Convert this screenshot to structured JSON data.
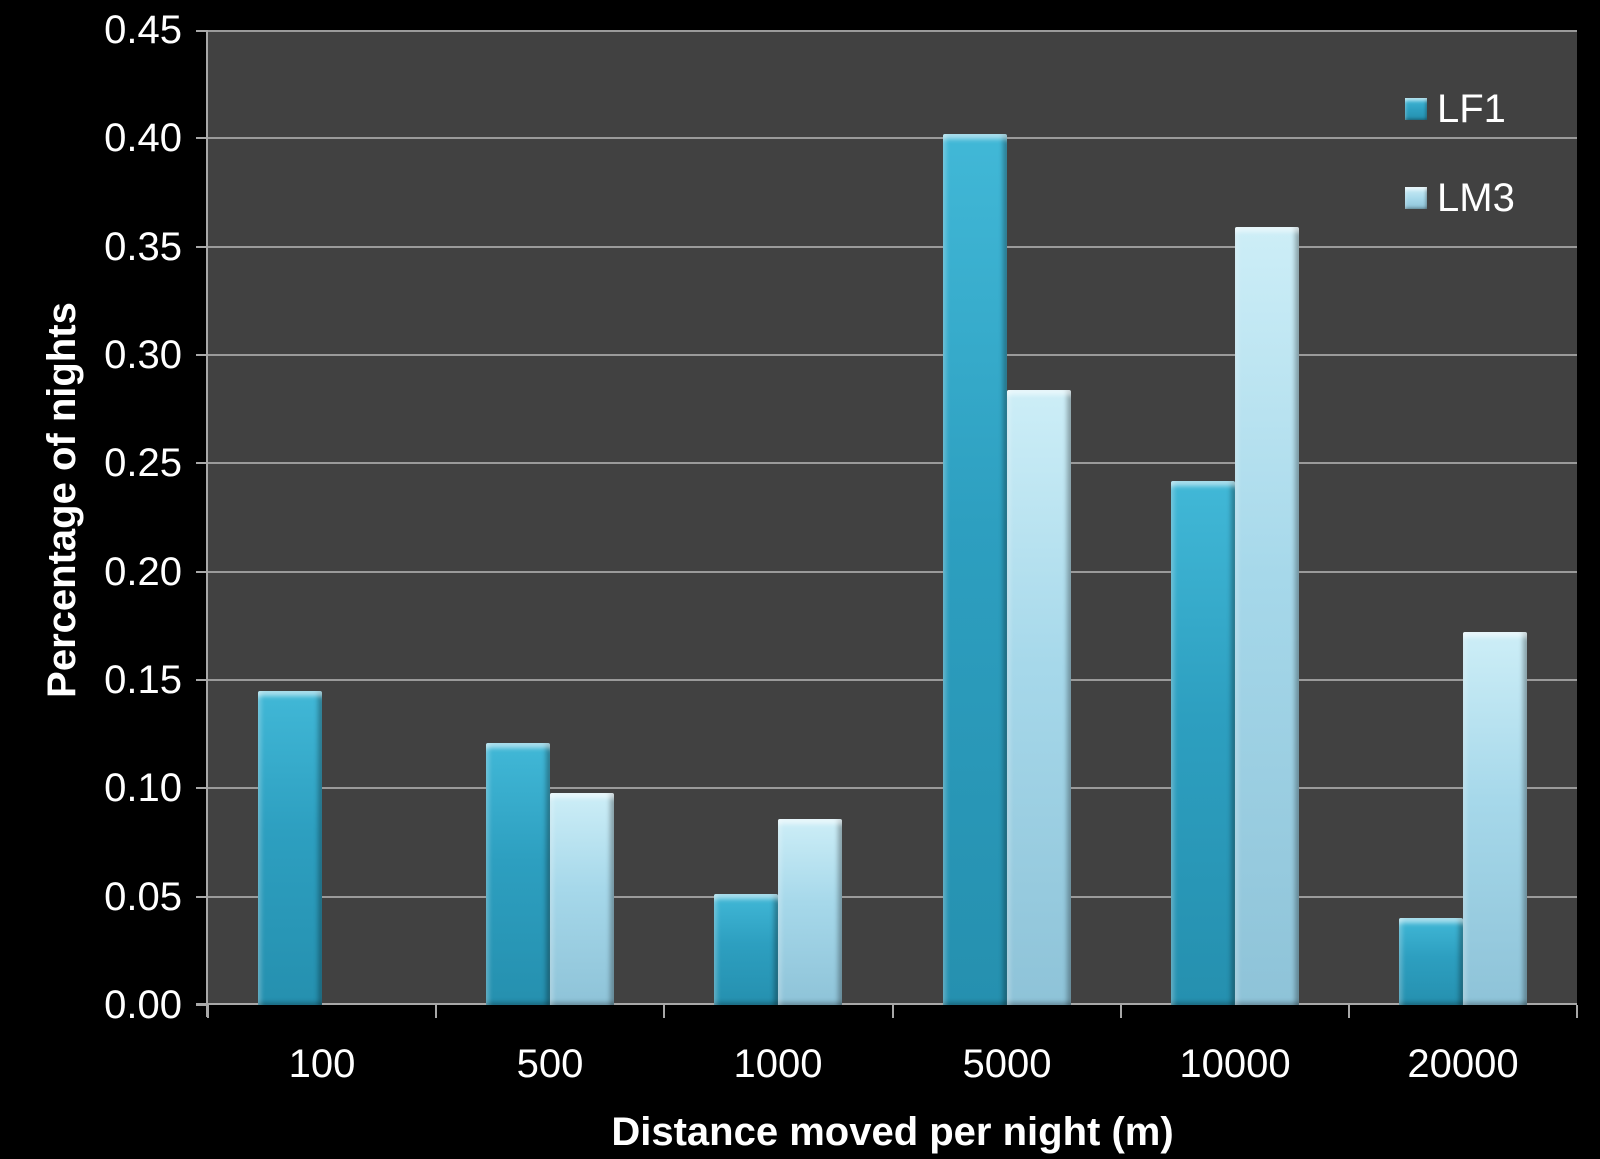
{
  "colors": {
    "page_bg": "#000000",
    "plot_bg": "#414141",
    "gridline": "#9a9a9a",
    "axis": "#a8a8a8",
    "text": "#ffffff"
  },
  "chart_data": {
    "type": "bar",
    "title": "",
    "xlabel": "Distance moved per night (m)",
    "ylabel": "Percentage of nights",
    "categories": [
      "100",
      "500",
      "1000",
      "5000",
      "10000",
      "20000"
    ],
    "series": [
      {
        "name": "LF1",
        "color": "#2d9fc0",
        "color_top": "#41b8d7",
        "color_bottom": "#2590af",
        "values": [
          0.145,
          0.121,
          0.051,
          0.402,
          0.242,
          0.04
        ]
      },
      {
        "name": "LM3",
        "color": "#a6d8ea",
        "color_top": "#cdeef7",
        "color_bottom": "#8ec3d8",
        "values": [
          0,
          0.098,
          0.086,
          0.284,
          0.359,
          0.172
        ]
      }
    ],
    "ylim": [
      0,
      0.45
    ],
    "ytick_step": 0.05,
    "ytick_labels": [
      "0.00",
      "0.05",
      "0.10",
      "0.15",
      "0.20",
      "0.25",
      "0.30",
      "0.35",
      "0.40",
      "0.45"
    ],
    "grid": true,
    "legend_position": "top-right-inside-plot"
  }
}
